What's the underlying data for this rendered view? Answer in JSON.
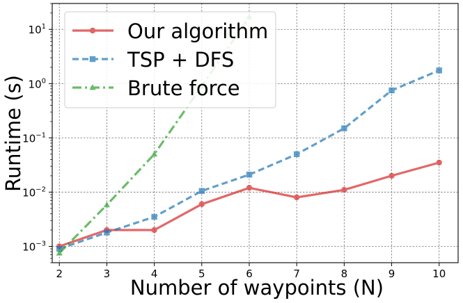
{
  "chart_data": {
    "type": "line",
    "title": "",
    "xlabel": "Number of waypoints (N)",
    "ylabel": "Runtime (s)",
    "y_scale": "log",
    "xlim": [
      1.85,
      10.4
    ],
    "ylim": [
      0.0005,
      30
    ],
    "x_ticks": [
      2,
      3,
      4,
      5,
      6,
      7,
      8,
      9,
      10
    ],
    "y_ticks": [
      0.001,
      0.01,
      0.1,
      1,
      10
    ],
    "y_tick_labels": [
      {
        "base": "10",
        "exp": "−3"
      },
      {
        "base": "10",
        "exp": "−2"
      },
      {
        "base": "10",
        "exp": "−1"
      },
      {
        "base": "10",
        "exp": "0"
      },
      {
        "base": "10",
        "exp": "1"
      }
    ],
    "grid": true,
    "legend_position": "top-left",
    "series": [
      {
        "name": "Our algorithm",
        "color": "#d62728",
        "marker": "circle",
        "line_style": "solid",
        "x": [
          2,
          3,
          4,
          5,
          6,
          7,
          8,
          9,
          10
        ],
        "y": [
          0.001,
          0.002,
          0.002,
          0.006,
          0.012,
          0.008,
          0.011,
          0.02,
          0.035
        ]
      },
      {
        "name": "TSP + DFS",
        "color": "#1f77b4",
        "marker": "square",
        "line_style": "dashed",
        "x": [
          2,
          3,
          4,
          5,
          6,
          7,
          8,
          9,
          10
        ],
        "y": [
          0.0009,
          0.0018,
          0.0035,
          0.0105,
          0.021,
          0.05,
          0.15,
          0.75,
          1.75
        ]
      },
      {
        "name": "Brute force",
        "color": "#2ca02c",
        "marker": "triangle",
        "line_style": "dashdot",
        "x": [
          2,
          3,
          4,
          5,
          6
        ],
        "y": [
          0.00075,
          0.0058,
          0.05,
          0.9,
          17
        ]
      }
    ]
  }
}
